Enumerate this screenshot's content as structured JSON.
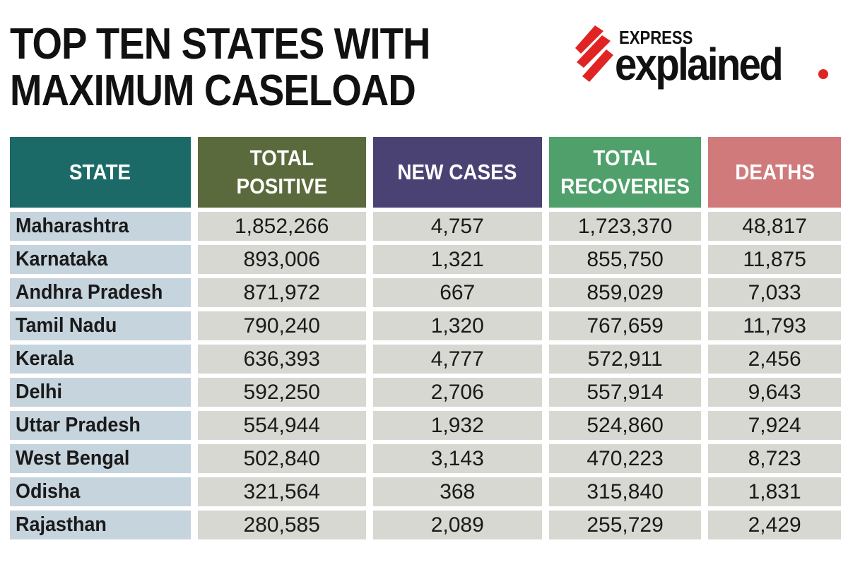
{
  "title": {
    "line1": "TOP TEN STATES WITH",
    "line2": "MAXIMUM CASELOAD"
  },
  "logo": {
    "express": "EXPRESS",
    "explained": "explained",
    "brand_color": "#e02424"
  },
  "chart_data": {
    "type": "table",
    "title": "TOP TEN STATES WITH MAXIMUM CASELOAD",
    "columns": [
      "STATE",
      "TOTAL POSITIVE",
      "NEW CASES",
      "TOTAL RECOVERIES",
      "DEATHS"
    ],
    "header_colors": [
      "#1b6a67",
      "#5b6a3c",
      "#4b4274",
      "#4fa06a",
      "#d07a7c"
    ],
    "rows": [
      [
        "Maharashtra",
        "1,852,266",
        "4,757",
        "1,723,370",
        "48,817"
      ],
      [
        "Karnataka",
        "893,006",
        "1,321",
        "855,750",
        "11,875"
      ],
      [
        "Andhra Pradesh",
        "871,972",
        "667",
        "859,029",
        "7,033"
      ],
      [
        "Tamil Nadu",
        "790,240",
        "1,320",
        "767,659",
        "11,793"
      ],
      [
        "Kerala",
        "636,393",
        "4,777",
        "572,911",
        "2,456"
      ],
      [
        "Delhi",
        "592,250",
        "2,706",
        "557,914",
        "9,643"
      ],
      [
        "Uttar Pradesh",
        "554,944",
        "1,932",
        "524,860",
        "7,924"
      ],
      [
        "West Bengal",
        "502,840",
        "3,143",
        "470,223",
        "8,723"
      ],
      [
        "Odisha",
        "321,564",
        "368",
        "315,840",
        "1,831"
      ],
      [
        "Rajasthan",
        "280,585",
        "2,089",
        "255,729",
        "2,429"
      ]
    ]
  }
}
